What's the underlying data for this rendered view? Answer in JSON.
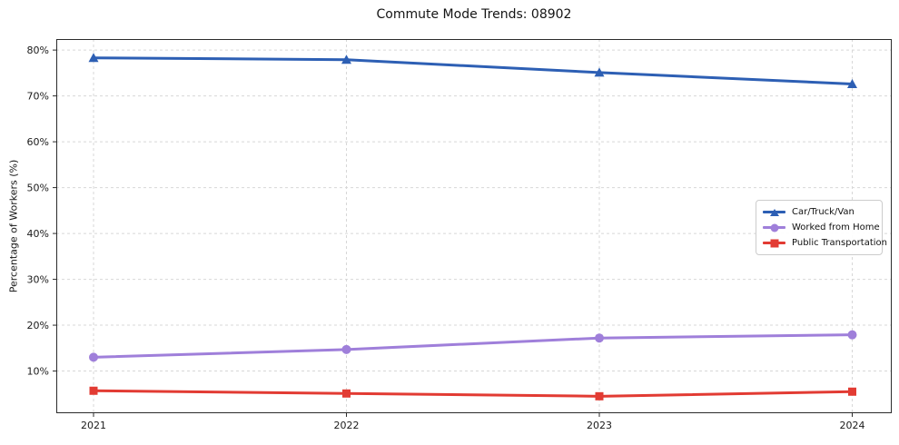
{
  "chart_data": {
    "type": "line",
    "title": "Commute Mode Trends: 08902",
    "xlabel": "",
    "ylabel": "Percentage of Workers (%)",
    "x": [
      2021,
      2022,
      2023,
      2024
    ],
    "xtick_labels": [
      "2021",
      "2022",
      "2023",
      "2024"
    ],
    "ylim": [
      0.8,
      82.4
    ],
    "yticks": [
      10,
      20,
      30,
      40,
      50,
      60,
      70,
      80
    ],
    "ytick_labels": [
      "10%",
      "20%",
      "30%",
      "40%",
      "50%",
      "60%",
      "70%",
      "80%"
    ],
    "grid": "dashed, both axes",
    "legend_position": "center right",
    "series": [
      {
        "name": "Car/Truck/Van",
        "color": "#2d5fb4",
        "marker": "triangle",
        "values": [
          78.3,
          77.9,
          75.1,
          72.6
        ]
      },
      {
        "name": "Worked from Home",
        "color": "#9f7fda",
        "marker": "circle",
        "values": [
          13.0,
          14.7,
          17.2,
          17.9
        ]
      },
      {
        "name": "Public Transportation",
        "color": "#e23b33",
        "marker": "square",
        "values": [
          5.7,
          5.1,
          4.5,
          5.5
        ]
      }
    ]
  }
}
